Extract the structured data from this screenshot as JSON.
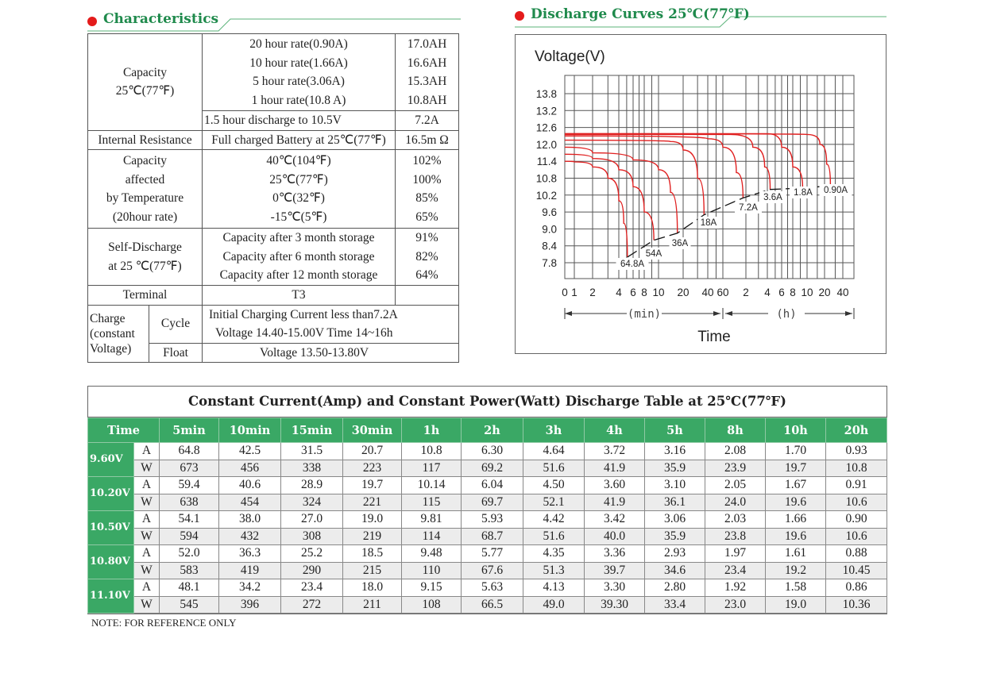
{
  "characteristics": {
    "heading": "Characteristics",
    "capacity": {
      "label_line1": "Capacity",
      "label_line2": "25℃(77℉)",
      "rates": [
        "20 hour rate(0.90A)",
        "10 hour rate(1.66A)",
        "5 hour rate(3.06A)",
        "1 hour rate(10.8 A)"
      ],
      "values": [
        "17.0AH",
        "16.6AH",
        "15.3AH",
        "10.8AH"
      ],
      "discharge_label": "1.5 hour discharge to 10.5V",
      "discharge_value": "7.2A"
    },
    "internal_resistance": {
      "label": "Internal Resistance",
      "condition": "Full charged Battery at 25℃(77℉)",
      "value": "16.5m Ω"
    },
    "temperature": {
      "label_lines": [
        "Capacity",
        "affected",
        "by Temperature",
        "(20hour rate)"
      ],
      "conditions": [
        "40℃(104℉)",
        "25℃(77℉)",
        "0℃(32℉)",
        "-15℃(5℉)"
      ],
      "values": [
        "102%",
        "100%",
        "85%",
        "65%"
      ]
    },
    "self_discharge": {
      "label_lines": [
        "Self-Discharge",
        "at 25 ℃(77℉)"
      ],
      "conditions": [
        "Capacity after 3 month storage",
        "Capacity after 6 month storage",
        "Capacity after 12 month storage"
      ],
      "values": [
        "91%",
        "82%",
        "64%"
      ]
    },
    "terminal": {
      "label": "Terminal",
      "value": "T3"
    },
    "charge": {
      "label_lines": [
        "Charge",
        "(constant",
        "Voltage)"
      ],
      "cycle_label": "Cycle",
      "cycle_lines": [
        "Initial Charging Current less than7.2A",
        "Voltage 14.40-15.00V  Time 14~16h"
      ],
      "float_label": "Float",
      "float_value": "Voltage 13.50-13.80V"
    }
  },
  "discharge_curves": {
    "heading": "Discharge Curves 25℃(77℉)"
  },
  "chart_data": {
    "type": "line",
    "title": "Discharge Curves 25℃(77℉)",
    "ylabel": "Voltage(V)",
    "xlabel": "Time",
    "x_unit_labels": [
      "(min)",
      "(h)"
    ],
    "x_scale": "log-like (minutes then hours)",
    "ylim": [
      7.2,
      14.4
    ],
    "yticks": [
      "13.8",
      "13.2",
      "12.6",
      "12.0",
      "11.4",
      "10.8",
      "10.2",
      "9.6",
      "9.0",
      "8.4",
      "7.8"
    ],
    "xticks": [
      {
        "label": "0",
        "minutes": 0
      },
      {
        "label": "1",
        "minutes": 1
      },
      {
        "label": "2",
        "minutes": 2
      },
      {
        "label": "4",
        "minutes": 4
      },
      {
        "label": "6",
        "minutes": 6
      },
      {
        "label": "8",
        "minutes": 8
      },
      {
        "label": "10",
        "minutes": 10
      },
      {
        "label": "20",
        "minutes": 20
      },
      {
        "label": "40",
        "minutes": 40
      },
      {
        "label": "60",
        "minutes": 60
      },
      {
        "label": "2",
        "minutes": 120
      },
      {
        "label": "4",
        "minutes": 240
      },
      {
        "label": "6",
        "minutes": 360
      },
      {
        "label": "8",
        "minutes": 480
      },
      {
        "label": "10",
        "minutes": 600
      },
      {
        "label": "20",
        "minutes": 1200
      },
      {
        "label": "40",
        "minutes": 2400
      }
    ],
    "grid": true,
    "series_color": "#e02020",
    "series": [
      {
        "name": "64.8A",
        "points": [
          [
            0,
            11.4
          ],
          [
            1,
            11.38
          ],
          [
            2,
            11.2
          ],
          [
            3,
            10.8
          ],
          [
            4,
            10.0
          ],
          [
            4.6,
            9.2
          ],
          [
            5.1,
            8.0
          ]
        ]
      },
      {
        "name": "54A",
        "points": [
          [
            0,
            11.65
          ],
          [
            2,
            11.5
          ],
          [
            4,
            11.1
          ],
          [
            6,
            10.5
          ],
          [
            8,
            9.6
          ],
          [
            9.3,
            8.6
          ]
        ]
      },
      {
        "name": "36A",
        "points": [
          [
            0,
            11.9
          ],
          [
            2,
            11.7
          ],
          [
            6,
            11.45
          ],
          [
            10,
            11.1
          ],
          [
            14,
            10.3
          ],
          [
            17,
            8.85
          ]
        ]
      },
      {
        "name": "18A",
        "points": [
          [
            0,
            12.15
          ],
          [
            14,
            12.1
          ],
          [
            20,
            11.8
          ],
          [
            30,
            10.8
          ],
          [
            36,
            9.5
          ]
        ]
      },
      {
        "name": "7.2A",
        "points": [
          [
            0,
            12.3
          ],
          [
            40,
            12.2
          ],
          [
            60,
            11.9
          ],
          [
            90,
            11.0
          ],
          [
            110,
            10.1
          ]
        ]
      },
      {
        "name": "3.6A",
        "points": [
          [
            0,
            12.35
          ],
          [
            75,
            12.35
          ],
          [
            150,
            11.9
          ],
          [
            220,
            11.2
          ],
          [
            260,
            10.4
          ]
        ]
      },
      {
        "name": "1.8A",
        "points": [
          [
            0,
            12.38
          ],
          [
            240,
            12.38
          ],
          [
            360,
            11.9
          ],
          [
            480,
            11.2
          ],
          [
            560,
            10.45
          ]
        ]
      },
      {
        "name": "0.90A",
        "points": [
          [
            0,
            12.38
          ],
          [
            600,
            12.35
          ],
          [
            1000,
            12.0
          ],
          [
            1300,
            11.3
          ],
          [
            1500,
            10.53
          ]
        ]
      }
    ]
  },
  "discharge_table": {
    "title": "Constant Current(Amp) and Constant Power(Watt) Discharge Table at 25℃(77℉)",
    "time_header": "Time",
    "columns": [
      "5min",
      "10min",
      "15min",
      "30min",
      "1h",
      "2h",
      "3h",
      "4h",
      "5h",
      "8h",
      "10h",
      "20h"
    ],
    "rows": [
      {
        "voltage": "9.60V",
        "A": [
          "64.8",
          "42.5",
          "31.5",
          "20.7",
          "10.8",
          "6.30",
          "4.64",
          "3.72",
          "3.16",
          "2.08",
          "1.70",
          "0.93"
        ],
        "W": [
          "673",
          "456",
          "338",
          "223",
          "117",
          "69.2",
          "51.6",
          "41.9",
          "35.9",
          "23.9",
          "19.7",
          "10.8"
        ]
      },
      {
        "voltage": "10.20V",
        "A": [
          "59.4",
          "40.6",
          "28.9",
          "19.7",
          "10.14",
          "6.04",
          "4.50",
          "3.60",
          "3.10",
          "2.05",
          "1.67",
          "0.91"
        ],
        "W": [
          "638",
          "454",
          "324",
          "221",
          "115",
          "69.7",
          "52.1",
          "41.9",
          "36.1",
          "24.0",
          "19.6",
          "10.6"
        ]
      },
      {
        "voltage": "10.50V",
        "A": [
          "54.1",
          "38.0",
          "27.0",
          "19.0",
          "9.81",
          "5.93",
          "4.42",
          "3.42",
          "3.06",
          "2.03",
          "1.66",
          "0.90"
        ],
        "W": [
          "594",
          "432",
          "308",
          "219",
          "114",
          "68.7",
          "51.6",
          "40.0",
          "35.9",
          "23.8",
          "19.6",
          "10.6"
        ]
      },
      {
        "voltage": "10.80V",
        "A": [
          "52.0",
          "36.3",
          "25.2",
          "18.5",
          "9.48",
          "5.77",
          "4.35",
          "3.36",
          "2.93",
          "1.97",
          "1.61",
          "0.88"
        ],
        "W": [
          "583",
          "419",
          "290",
          "215",
          "110",
          "67.6",
          "51.3",
          "39.7",
          "34.6",
          "23.4",
          "19.2",
          "10.45"
        ]
      },
      {
        "voltage": "11.10V",
        "A": [
          "48.1",
          "34.2",
          "23.4",
          "18.0",
          "9.15",
          "5.63",
          "4.13",
          "3.30",
          "2.80",
          "1.92",
          "1.58",
          "0.86"
        ],
        "W": [
          "545",
          "396",
          "272",
          "211",
          "108",
          "66.5",
          "49.0",
          "39.30",
          "33.4",
          "23.0",
          "19.0",
          "10.36"
        ]
      }
    ],
    "unit_labels": {
      "A": "A",
      "W": "W"
    }
  },
  "note": "NOTE: FOR REFERENCE ONLY",
  "colors": {
    "green": "#3aa865",
    "heading_green": "#1f8a4c",
    "bullet_red": "#e41b1b",
    "curve_red": "#e02020"
  }
}
